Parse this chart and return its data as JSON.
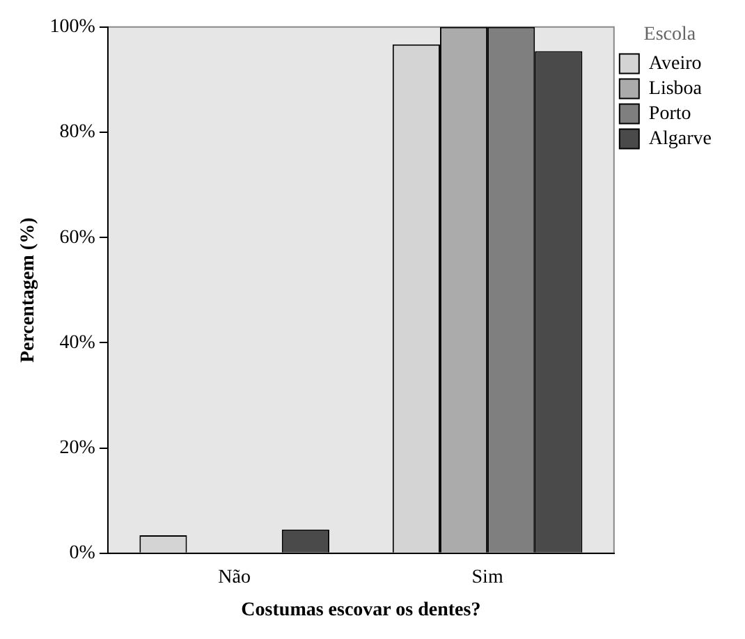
{
  "chart_data": {
    "type": "bar",
    "xlabel": "Costumas escovar os dentes?",
    "ylabel": "Percentagem (%)",
    "legend_title": "Escola",
    "categories": [
      "Não",
      "Sim"
    ],
    "series": [
      {
        "name": "Aveiro",
        "color": "#d4d4d4",
        "values": [
          3.4,
          96.7
        ]
      },
      {
        "name": "Lisboa",
        "color": "#ababab",
        "values": [
          0,
          100
        ]
      },
      {
        "name": "Porto",
        "color": "#7f7f7f",
        "values": [
          0,
          100
        ]
      },
      {
        "name": "Algarve",
        "color": "#4a4a4a",
        "values": [
          4.5,
          95.4
        ]
      }
    ],
    "ylim": [
      0,
      100
    ],
    "yticks": [
      {
        "value": 0,
        "label": "0%"
      },
      {
        "value": 20,
        "label": "20%"
      },
      {
        "value": 40,
        "label": "40%"
      },
      {
        "value": 60,
        "label": "60%"
      },
      {
        "value": 80,
        "label": "80%"
      },
      {
        "value": 100,
        "label": "100%"
      }
    ],
    "grid": false,
    "legend": "top right"
  }
}
